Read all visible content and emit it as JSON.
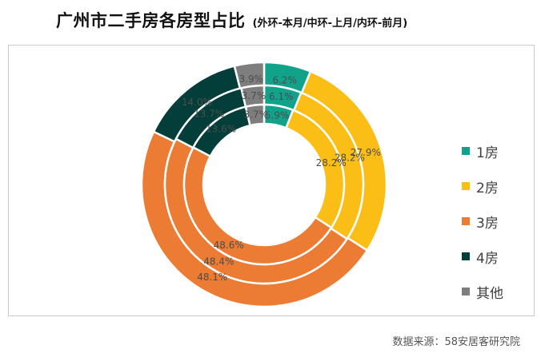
{
  "title": "广州市二手房各房型占比",
  "subtitle": "(外环-本月/中环-上月/内环-前月)",
  "source": "数据来源：58安居客研究院",
  "chart_data": {
    "type": "donut",
    "categories": [
      "1房",
      "2房",
      "3房",
      "4房",
      "其他"
    ],
    "colors": [
      "#11a28c",
      "#fbbe16",
      "#ec7b34",
      "#033e3a",
      "#7e7e7e"
    ],
    "rings": [
      {
        "name": "本月",
        "values": [
          6.2,
          27.9,
          48.1,
          14.0,
          3.9
        ]
      },
      {
        "name": "上月",
        "values": [
          6.1,
          28.2,
          48.4,
          13.7,
          3.7
        ]
      },
      {
        "name": "前月",
        "values": [
          5.9,
          28.2,
          48.6,
          13.6,
          3.7
        ]
      }
    ],
    "value_suffix": "%",
    "legend": "right"
  }
}
